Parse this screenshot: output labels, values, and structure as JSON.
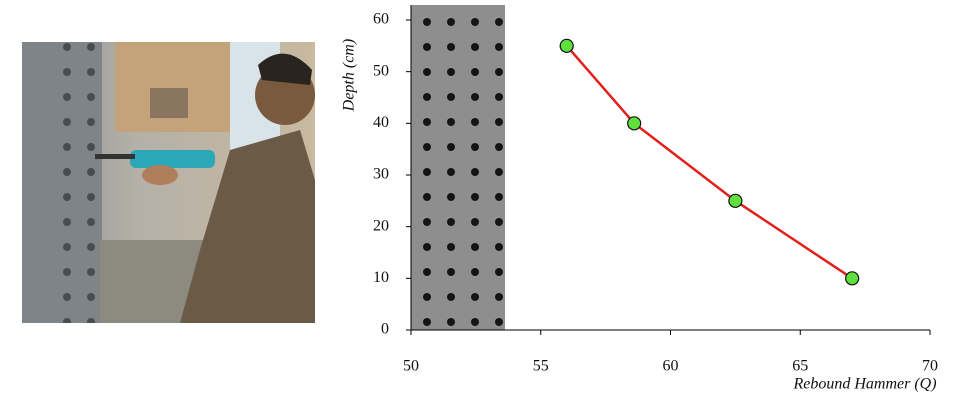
{
  "chart_data": {
    "type": "line",
    "x_label": "Rebound Hammer (Q)",
    "y_label": "Depth (cm)",
    "x": [
      56,
      58.6,
      62.5,
      67
    ],
    "values": [
      55,
      40,
      25,
      10
    ],
    "color": "#e3201b",
    "marker_color": "#5fe03c",
    "xlim": [
      50,
      70
    ],
    "xticks": [
      50,
      55,
      60,
      65,
      70
    ],
    "ylim": [
      0,
      60
    ],
    "yticks": [
      0,
      10,
      20,
      30,
      40,
      50,
      60
    ]
  }
}
